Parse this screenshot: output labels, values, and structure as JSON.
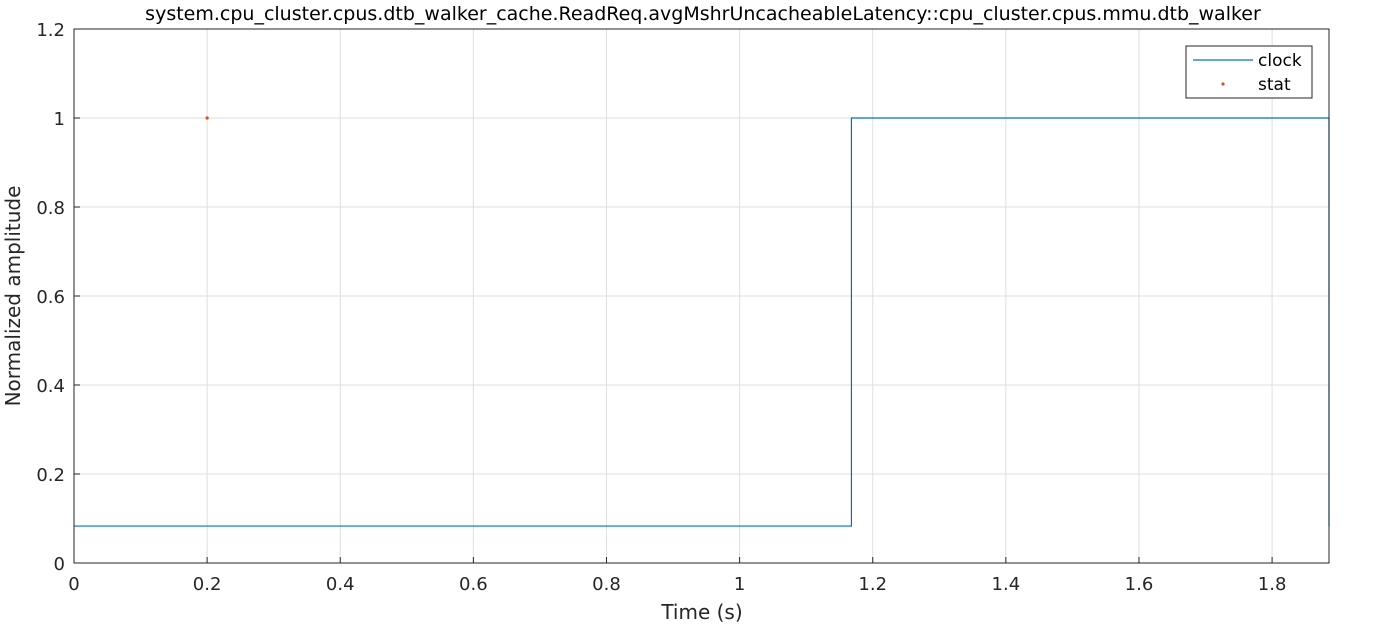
{
  "chart_data": {
    "type": "line",
    "title": "system.cpu_cluster.cpus.dtb_walker_cache.ReadReq.avgMshrUncacheableLatency::cpu_cluster.cpus.mmu.dtb_walker",
    "xlabel": "Time (s)",
    "ylabel": "Normalized amplitude",
    "xlim": [
      0,
      1.8855
    ],
    "ylim": [
      0,
      1.2
    ],
    "xticks": [
      0,
      0.2,
      0.4,
      0.6,
      0.8,
      1,
      1.2,
      1.4,
      1.6,
      1.8
    ],
    "xtick_labels": [
      "0",
      "0.2",
      "0.4",
      "0.6",
      "0.8",
      "1",
      "1.2",
      "1.4",
      "1.6",
      "1.8"
    ],
    "yticks": [
      0,
      0.2,
      0.4,
      0.6,
      0.8,
      1,
      1.2
    ],
    "ytick_labels": [
      "0",
      "0.2",
      "0.4",
      "0.6",
      "0.8",
      "1",
      "1.2"
    ],
    "grid": true,
    "legend_position": "top-right",
    "series": [
      {
        "name": "clock",
        "style": "step-line",
        "color": "#0072BD",
        "x": [
          0,
          1.168,
          1.168,
          1.8855,
          1.8855
        ],
        "y": [
          0.083,
          0.083,
          1,
          1,
          0.083
        ]
      },
      {
        "name": "stat",
        "style": "marker",
        "color": "#D95319",
        "x": [
          0.2
        ],
        "y": [
          1
        ]
      }
    ]
  }
}
